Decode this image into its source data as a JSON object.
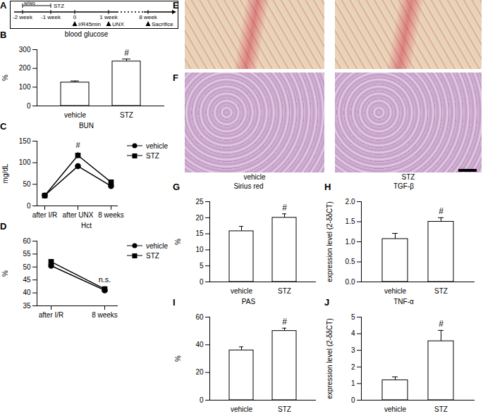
{
  "chart_data": [
    {
      "panel": "B",
      "type": "bar",
      "title": "blood glucose",
      "y_label": "%",
      "categories": [
        "vehicle",
        "STZ"
      ],
      "values": [
        125,
        237
      ],
      "errors": [
        8,
        13
      ],
      "color": "#ffffff",
      "ylim": [
        0,
        300
      ],
      "yticks": [
        0,
        100,
        200,
        300
      ],
      "annotations": [
        {
          "category": "STZ",
          "text": "#"
        }
      ]
    },
    {
      "panel": "C",
      "type": "line",
      "title": "BUN",
      "y_label": "mg/dL",
      "categories": [
        "after I/R",
        "after UNX",
        "8 weeks"
      ],
      "series": [
        {
          "name": "vehicle",
          "color": "#000000",
          "marker": "circle",
          "values": [
            24,
            92,
            46
          ],
          "errors": [
            1,
            5,
            2
          ]
        },
        {
          "name": "STZ",
          "color": "#000000",
          "marker": "square",
          "values": [
            24,
            117,
            55
          ],
          "errors": [
            1,
            7,
            3
          ]
        }
      ],
      "ylim": [
        0,
        150
      ],
      "yticks": [
        0,
        50,
        100,
        150
      ],
      "legend": "right",
      "annotations": [
        {
          "category": "after UNX",
          "text": "#"
        }
      ]
    },
    {
      "panel": "D",
      "type": "line",
      "title": "Hct",
      "y_label": "%",
      "categories": [
        "after I/R",
        "8 weeks"
      ],
      "series": [
        {
          "name": "vehicle",
          "color": "#000000",
          "marker": "circle",
          "values": [
            50.5,
            41
          ],
          "errors": [
            0.6,
            0.8
          ]
        },
        {
          "name": "STZ",
          "color": "#000000",
          "marker": "square",
          "values": [
            52,
            41.5
          ],
          "errors": [
            0.7,
            0.9
          ]
        }
      ],
      "ylim": [
        35,
        60
      ],
      "yticks": [
        35,
        40,
        45,
        50,
        55,
        60
      ],
      "legend": "right",
      "annotations": [
        {
          "category": "8 weeks",
          "text": "n.s."
        }
      ]
    },
    {
      "panel": "G",
      "type": "bar",
      "title": "Sirius red",
      "y_label": "%",
      "categories": [
        "vehicle",
        "STZ"
      ],
      "values": [
        15.8,
        20
      ],
      "errors": [
        1.5,
        1.2
      ],
      "color": "#ffffff",
      "ylim": [
        0,
        25
      ],
      "yticks": [
        0,
        5,
        10,
        15,
        20,
        25
      ],
      "annotations": [
        {
          "category": "STZ",
          "text": "#"
        }
      ]
    },
    {
      "panel": "H",
      "type": "bar",
      "title": "TGF-β",
      "y_label": "expression level (2-δδCT)",
      "categories": [
        "vehicle",
        "STZ"
      ],
      "values": [
        1.07,
        1.5
      ],
      "errors": [
        0.14,
        0.1
      ],
      "color": "#ffffff",
      "ylim": [
        0,
        2
      ],
      "yticks": [
        {
          "value": 0,
          "label": "0.0"
        },
        {
          "value": 0.5,
          "label": "0.5"
        },
        {
          "value": 1,
          "label": "1.0"
        },
        {
          "value": 1.5,
          "label": "1.5"
        },
        {
          "value": 2,
          "label": "2.0"
        }
      ],
      "annotations": [
        {
          "category": "STZ",
          "text": "#"
        }
      ]
    },
    {
      "panel": "I",
      "type": "bar",
      "title": "PAS",
      "y_label": "%",
      "categories": [
        "vehicle",
        "STZ"
      ],
      "values": [
        36,
        50
      ],
      "errors": [
        2.5,
        2
      ],
      "color": "#ffffff",
      "ylim": [
        0,
        60
      ],
      "yticks": [
        0,
        20,
        40,
        60
      ],
      "annotations": [
        {
          "category": "STZ",
          "text": "#"
        }
      ]
    },
    {
      "panel": "J",
      "type": "bar",
      "title": "TNF-α",
      "y_label": "expression level (2-δδCT)",
      "categories": [
        "vehicle",
        "STZ"
      ],
      "values": [
        1.2,
        3.55
      ],
      "errors": [
        0.2,
        0.65
      ],
      "color": "#ffffff",
      "ylim": [
        0,
        5
      ],
      "yticks": [
        0,
        1,
        2,
        3,
        4,
        5
      ],
      "annotations": [
        {
          "category": "STZ",
          "text": "#"
        }
      ]
    }
  ],
  "timeline": {
    "panel": "A",
    "bracket": [
      "w/wo",
      "STZ"
    ],
    "points": [
      {
        "label": "-2 week"
      },
      {
        "label": "-1 week"
      },
      {
        "label": "0",
        "event": "I/R45min"
      },
      {
        "label": "1 week",
        "event": "UNX"
      },
      {
        "label": "8 week",
        "event": "Sacrifice"
      }
    ]
  },
  "images": {
    "panels": [
      "E",
      "F"
    ],
    "captions": [
      "vehicle",
      "STZ"
    ]
  }
}
